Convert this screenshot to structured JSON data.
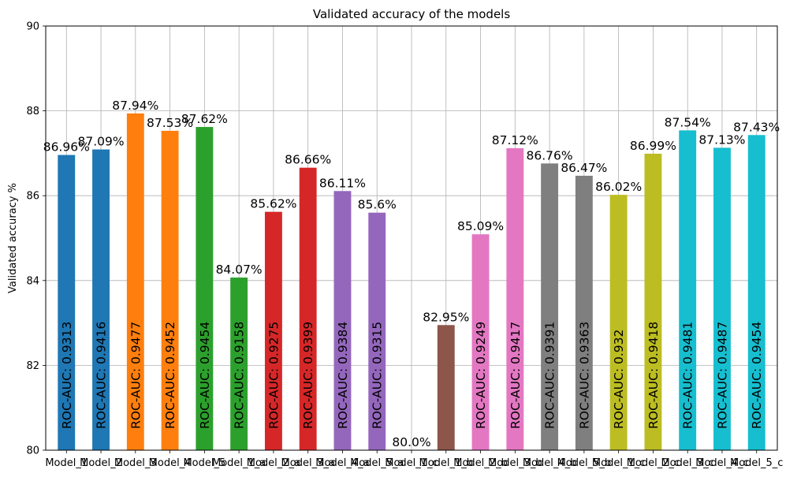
{
  "chart_data": {
    "type": "bar",
    "title": "Validated accuracy of the models",
    "xlabel": "",
    "ylabel": "Validated accuracy %",
    "ylim": [
      80,
      90
    ],
    "yticks": [
      "80",
      "82",
      "84",
      "86",
      "88",
      "90"
    ],
    "grid": true,
    "categories": [
      "Model_1",
      "Model_2",
      "Model_3",
      "Model_4",
      "Model_5",
      "Model_1_a",
      "Model_2_a",
      "Model_3_a",
      "Model_4_a",
      "Model_5_a",
      "Model_1_c",
      "Model_1_b",
      "Model_2_b",
      "Model_3_b",
      "Model_4_b",
      "Model_5_b",
      "Model_1_c",
      "Model_2_c",
      "Model_3_c",
      "Model_4_c",
      "Model_5_c"
    ],
    "values": [
      86.96,
      87.09,
      87.94,
      87.53,
      87.62,
      84.07,
      85.62,
      86.66,
      86.11,
      85.6,
      80.0,
      82.95,
      85.09,
      87.12,
      86.76,
      86.47,
      86.02,
      86.99,
      87.54,
      87.13,
      87.43
    ],
    "value_labels": [
      "86.96%",
      "87.09%",
      "87.94%",
      "87.53%",
      "87.62%",
      "84.07%",
      "85.62%",
      "86.66%",
      "86.11%",
      "85.6%",
      "80.0%",
      "82.95%",
      "85.09%",
      "87.12%",
      "86.76%",
      "86.47%",
      "86.02%",
      "86.99%",
      "87.54%",
      "87.13%",
      "87.43%"
    ],
    "roc_auc_labels": [
      "ROC-AUC: 0.9313",
      "ROC-AUC: 0.9416",
      "ROC-AUC: 0.9477",
      "ROC-AUC: 0.9452",
      "ROC-AUC: 0.9454",
      "ROC-AUC: 0.9158",
      "ROC-AUC: 0.9275",
      "ROC-AUC: 0.9399",
      "ROC-AUC: 0.9384",
      "ROC-AUC: 0.9315",
      "",
      "",
      "ROC-AUC: 0.9249",
      "ROC-AUC: 0.9417",
      "ROC-AUC: 0.9391",
      "ROC-AUC: 0.9363",
      "ROC-AUC: 0.932",
      "ROC-AUC: 0.9418",
      "ROC-AUC: 0.9481",
      "ROC-AUC: 0.9487",
      "ROC-AUC: 0.9454"
    ],
    "colors": [
      "#1f77b4",
      "#1f77b4",
      "#ff7f0e",
      "#ff7f0e",
      "#2ca02c",
      "#2ca02c",
      "#d62728",
      "#d62728",
      "#9467bd",
      "#9467bd",
      "#8c564b",
      "#8c564b",
      "#e377c2",
      "#e377c2",
      "#7f7f7f",
      "#7f7f7f",
      "#bcbd22",
      "#bcbd22",
      "#17becf",
      "#17becf",
      "#17becf"
    ]
  }
}
